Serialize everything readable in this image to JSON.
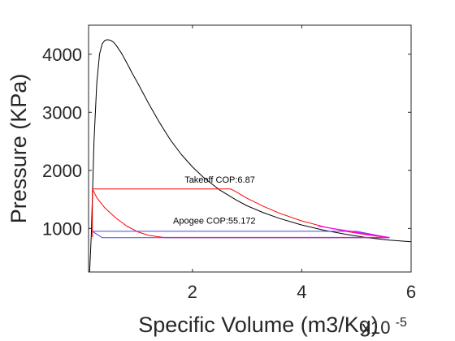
{
  "chart_data": {
    "type": "line",
    "title": "",
    "xlabel": "Specific Volume (m3/Kg)",
    "ylabel": "Pressure (KPa)",
    "x_exponent_label": "x10",
    "x_exponent_power": "-5",
    "xlim": [
      0.1,
      6.0
    ],
    "ylim": [
      250,
      4500
    ],
    "xticks": [
      {
        "value": 2,
        "label": "2"
      },
      {
        "value": 4,
        "label": "4"
      },
      {
        "value": 6,
        "label": "6"
      }
    ],
    "yticks": [
      {
        "value": 1000,
        "label": "1000"
      },
      {
        "value": 2000,
        "label": "2000"
      },
      {
        "value": 3000,
        "label": "3000"
      },
      {
        "value": 4000,
        "label": "4000"
      }
    ],
    "grid": false,
    "series": [
      {
        "color": "#000000",
        "x": [
          0.12,
          0.15,
          0.2,
          0.25,
          0.3,
          0.35,
          0.4,
          0.45,
          0.5,
          0.55,
          0.6,
          0.7,
          0.8,
          0.9,
          1.0,
          1.2,
          1.4,
          1.6,
          1.8,
          2.0,
          2.2,
          2.5,
          2.8,
          3.0,
          3.3,
          3.6,
          4.0,
          4.4,
          4.8,
          5.2,
          5.6,
          6.0
        ],
        "y": [
          220,
          900,
          2500,
          3500,
          4000,
          4180,
          4240,
          4250,
          4240,
          4210,
          4160,
          4020,
          3850,
          3670,
          3500,
          3150,
          2820,
          2520,
          2270,
          2060,
          1880,
          1660,
          1490,
          1390,
          1270,
          1170,
          1060,
          970,
          900,
          840,
          800,
          770
        ]
      },
      {
        "name": "Takeoff COP:6.87",
        "color": "#ff0000",
        "x": [
          0.17,
          0.17,
          2.7,
          2.8,
          3.0,
          3.3,
          3.6,
          4.0,
          4.4,
          4.8,
          5.2,
          5.6,
          1.5,
          1.2,
          1.0,
          0.8,
          0.6,
          0.4,
          0.25,
          0.17
        ],
        "y": [
          850,
          1680,
          1680,
          1630,
          1520,
          1380,
          1260,
          1130,
          1030,
          950,
          890,
          840,
          840,
          880,
          940,
          1040,
          1180,
          1350,
          1530,
          1680
        ]
      },
      {
        "name": "Apogee COP:55.172",
        "color": "#4a4ae8",
        "x": [
          0.17,
          5.0,
          5.6,
          0.35,
          0.17
        ],
        "y": [
          950,
          950,
          840,
          840,
          950
        ]
      },
      {
        "color": "#ff00ff",
        "x": [
          1.4,
          5.6,
          4.3,
          4.8,
          5.2,
          5.6
        ],
        "y": [
          845,
          845,
          1040,
          960,
          900,
          845
        ]
      }
    ],
    "annotations": [
      {
        "text": "Takeoff COP:6.87",
        "x": 2.5,
        "y": 1790
      },
      {
        "text": "Apogee COP:55.172",
        "x": 2.4,
        "y": 1080
      }
    ]
  }
}
